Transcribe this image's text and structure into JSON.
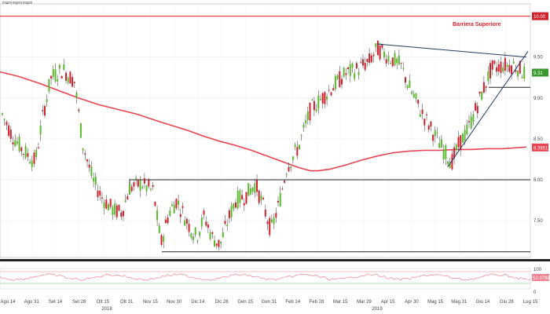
{
  "toolbar": {
    "zoom_icon": "magnifier-icon",
    "style_icon": "pencil-icon",
    "settings_icon": "gear-icon"
  },
  "objects_count": "0",
  "colors": {
    "up": "#5cb82e",
    "down": "#d0202a",
    "ma": "#e8434f",
    "barrier": "#e0202a",
    "trendline": "#1f3a66",
    "level": "#222222",
    "osc": "#f08090",
    "osc_line2": "#66bb66"
  },
  "chart_data": {
    "type": "candlestick",
    "annotation": "Barriera Superiore",
    "y_ticks": [
      "7.50",
      "8.00",
      "8.50",
      "9.00",
      "9.50"
    ],
    "y_range": [
      7.05,
      10.15
    ],
    "x_ticks": [
      "Ago 14",
      "Ago 31",
      "Set 14",
      "Set 28",
      "Ott 15",
      "Ott 31",
      "Nov 15",
      "Nov 30",
      "Dic 14",
      "Dic 28",
      "Gen 15",
      "Gen 31",
      "Feb 14",
      "Feb 28",
      "Mar 15",
      "Mar 29",
      "Apr 15",
      "Apr 30",
      "Mag 15",
      "Mag 31",
      "Giu 14",
      "Giu 28",
      "Lug 15"
    ],
    "years": [
      "2018",
      "2019"
    ],
    "price_tags": [
      {
        "label": "10.00",
        "value": 10.0,
        "color": "#d0202a"
      },
      {
        "label": "9.31",
        "value": 9.31,
        "color": "#3a9a2e"
      },
      {
        "label": "8.3951",
        "value": 8.3951,
        "color": "#e8434f"
      }
    ],
    "resistance": 10.0,
    "support_levels": [
      8.0
    ],
    "moving_average": [
      [
        0,
        9.32
      ],
      [
        25,
        9.26
      ],
      [
        50,
        9.18
      ],
      [
        75,
        9.09
      ],
      [
        100,
        9.0
      ],
      [
        125,
        8.92
      ],
      [
        150,
        8.86
      ],
      [
        175,
        8.8
      ],
      [
        200,
        8.72
      ],
      [
        220,
        8.66
      ],
      [
        240,
        8.6
      ],
      [
        260,
        8.53
      ],
      [
        280,
        8.47
      ],
      [
        300,
        8.42
      ],
      [
        320,
        8.36
      ],
      [
        340,
        8.29
      ],
      [
        360,
        8.22
      ],
      [
        380,
        8.15
      ],
      [
        395,
        8.11
      ],
      [
        405,
        8.11
      ],
      [
        420,
        8.13
      ],
      [
        440,
        8.18
      ],
      [
        460,
        8.24
      ],
      [
        480,
        8.29
      ],
      [
        500,
        8.33
      ],
      [
        520,
        8.35
      ],
      [
        540,
        8.36
      ],
      [
        560,
        8.36
      ],
      [
        580,
        8.37
      ],
      [
        600,
        8.37
      ],
      [
        620,
        8.38
      ],
      [
        640,
        8.38
      ],
      [
        655,
        8.39
      ],
      [
        670,
        8.4
      ]
    ],
    "price_path": [
      [
        3,
        8.8
      ],
      [
        15,
        8.55
      ],
      [
        30,
        8.35
      ],
      [
        45,
        8.22
      ],
      [
        55,
        8.8
      ],
      [
        65,
        9.25
      ],
      [
        80,
        9.35
      ],
      [
        95,
        9.2
      ],
      [
        105,
        8.45
      ],
      [
        118,
        8.0
      ],
      [
        130,
        7.78
      ],
      [
        145,
        7.62
      ],
      [
        155,
        7.6
      ],
      [
        165,
        7.9
      ],
      [
        180,
        7.95
      ],
      [
        195,
        7.86
      ],
      [
        205,
        7.22
      ],
      [
        215,
        7.6
      ],
      [
        225,
        7.75
      ],
      [
        240,
        7.45
      ],
      [
        250,
        7.3
      ],
      [
        260,
        7.55
      ],
      [
        270,
        7.3
      ],
      [
        280,
        7.2
      ],
      [
        290,
        7.5
      ],
      [
        300,
        7.75
      ],
      [
        312,
        7.8
      ],
      [
        325,
        7.95
      ],
      [
        335,
        7.68
      ],
      [
        345,
        7.38
      ],
      [
        355,
        7.7
      ],
      [
        365,
        8.15
      ],
      [
        380,
        8.4
      ],
      [
        395,
        8.85
      ],
      [
        410,
        9.0
      ],
      [
        425,
        9.15
      ],
      [
        440,
        9.3
      ],
      [
        455,
        9.35
      ],
      [
        470,
        9.45
      ],
      [
        480,
        9.6
      ],
      [
        495,
        9.5
      ],
      [
        510,
        9.4
      ],
      [
        520,
        9.15
      ],
      [
        535,
        8.85
      ],
      [
        550,
        8.6
      ],
      [
        565,
        8.35
      ],
      [
        575,
        8.22
      ],
      [
        585,
        8.45
      ],
      [
        595,
        8.6
      ],
      [
        605,
        8.85
      ],
      [
        615,
        9.1
      ],
      [
        625,
        9.35
      ],
      [
        640,
        9.4
      ],
      [
        655,
        9.4
      ],
      [
        668,
        9.3
      ]
    ],
    "subpanel": {
      "ticks": [
        "100",
        "0"
      ],
      "tag": "52.0788"
    }
  }
}
